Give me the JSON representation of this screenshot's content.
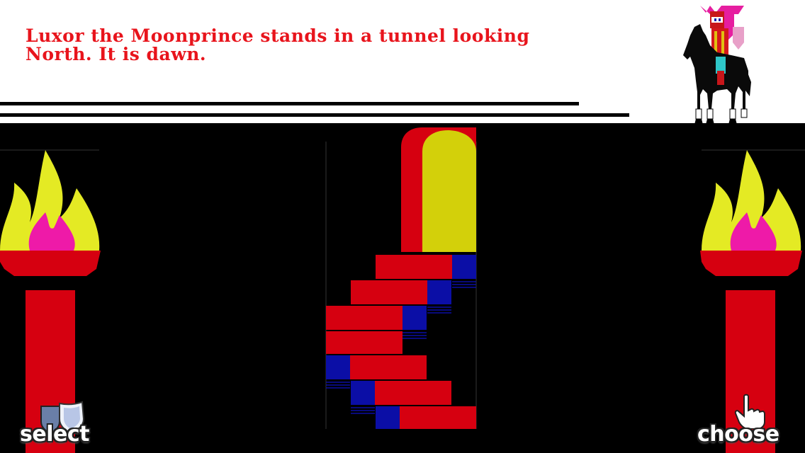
{
  "narration": "Luxor the Moonprince stands in a tunnel looking North. It is dawn.",
  "character": "Luxor the Moonprince",
  "time_of_day": "dawn",
  "facing": "North",
  "location": "tunnel",
  "buttons": {
    "select_label": "select",
    "choose_label": "choose"
  },
  "colors": {
    "text_red": "#e8141c",
    "flame_yellow": "#e4ea24",
    "flame_magenta": "#ee1aa8",
    "stair_red": "#d60010",
    "stair_blue": "#0b0ea6",
    "door_yellow": "#d3d00a"
  },
  "icons": [
    "knight-on-horse-icon",
    "torch-icon",
    "spiral-stair-icon",
    "shields-icon",
    "pointing-hand-icon"
  ]
}
